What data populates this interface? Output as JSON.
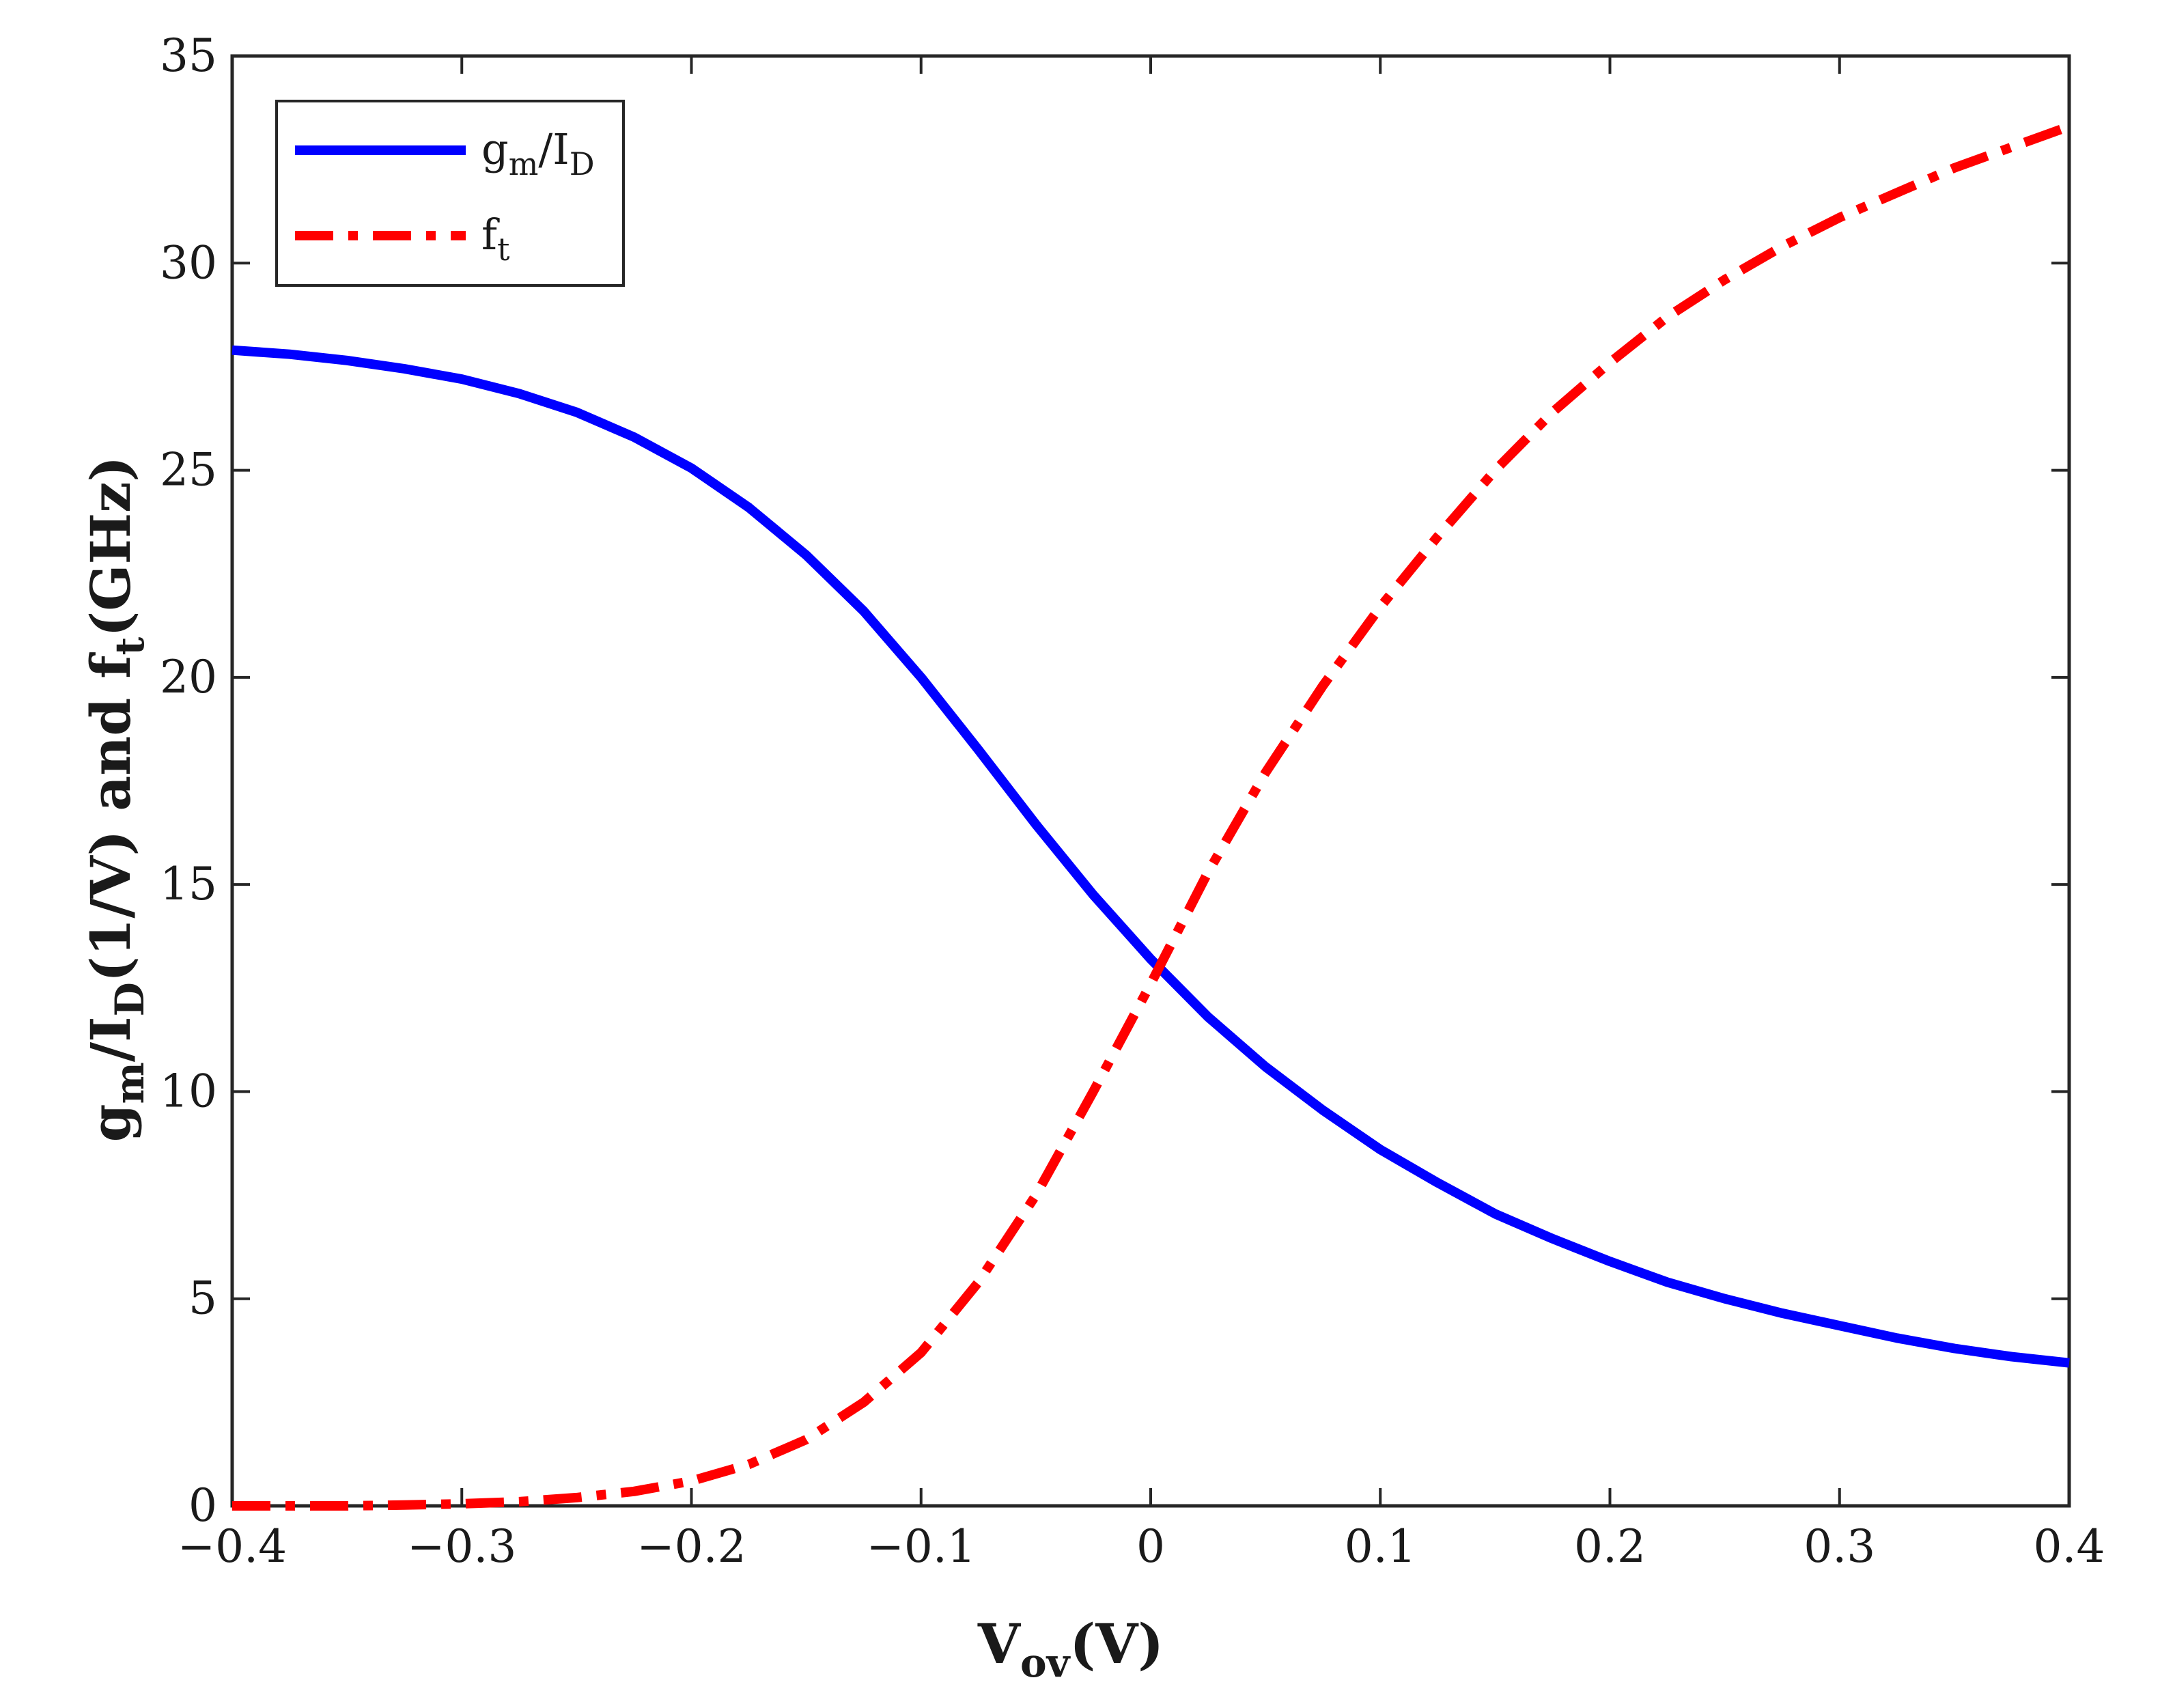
{
  "chart_data": {
    "type": "line",
    "xlabel": {
      "main": "V",
      "sub": "ov",
      "rest": "(V)"
    },
    "ylabel": {
      "p1": "g",
      "p1sub": "m",
      "p2": "/I",
      "p2sub": "D",
      "p3": "(1/V) and f",
      "p3sub": "t",
      "p4": "(GHz)"
    },
    "xlim": [
      -0.4,
      0.4
    ],
    "ylim": [
      0,
      35
    ],
    "xticks": [
      -0.4,
      -0.3,
      -0.2,
      -0.1,
      0,
      0.1,
      0.2,
      0.3,
      0.4
    ],
    "xtick_labels": [
      "−0.4",
      "−0.3",
      "−0.2",
      "−0.1",
      "0",
      "0.1",
      "0.2",
      "0.3",
      "0.4"
    ],
    "yticks": [
      0,
      5,
      10,
      15,
      20,
      25,
      30,
      35
    ],
    "ytick_labels": [
      "0",
      "5",
      "10",
      "15",
      "20",
      "25",
      "30",
      "35"
    ],
    "grid": false,
    "legend_position": "top-left",
    "x": [
      -0.4,
      -0.375,
      -0.35,
      -0.325,
      -0.3,
      -0.275,
      -0.25,
      -0.225,
      -0.2,
      -0.175,
      -0.15,
      -0.125,
      -0.1,
      -0.075,
      -0.05,
      -0.025,
      0,
      0.025,
      0.05,
      0.075,
      0.1,
      0.125,
      0.15,
      0.175,
      0.2,
      0.225,
      0.25,
      0.275,
      0.3,
      0.325,
      0.35,
      0.375,
      0.4
    ],
    "series": [
      {
        "name": "gm/ID",
        "legend": {
          "base": "g",
          "sub1": "m",
          "mid": "/I",
          "sub2": "D"
        },
        "color": "#0000ff",
        "style": "solid",
        "values": [
          27.9,
          27.8,
          27.65,
          27.45,
          27.2,
          26.85,
          26.4,
          25.8,
          25.05,
          24.1,
          22.95,
          21.6,
          20.0,
          18.25,
          16.45,
          14.75,
          13.2,
          11.8,
          10.6,
          9.55,
          8.6,
          7.8,
          7.05,
          6.45,
          5.9,
          5.4,
          5.0,
          4.65,
          4.35,
          4.05,
          3.8,
          3.6,
          3.45
        ]
      },
      {
        "name": "ft",
        "legend": {
          "base": "f",
          "sub1": "t"
        },
        "color": "#ff0000",
        "style": "dashdot",
        "values": [
          0.0,
          0.0,
          0.0,
          0.02,
          0.05,
          0.1,
          0.2,
          0.35,
          0.6,
          1.0,
          1.6,
          2.5,
          3.7,
          5.4,
          7.5,
          10.0,
          12.6,
          15.3,
          17.7,
          19.8,
          21.7,
          23.4,
          25.0,
          26.4,
          27.6,
          28.7,
          29.6,
          30.4,
          31.1,
          31.7,
          32.3,
          32.8,
          33.3
        ]
      }
    ]
  }
}
